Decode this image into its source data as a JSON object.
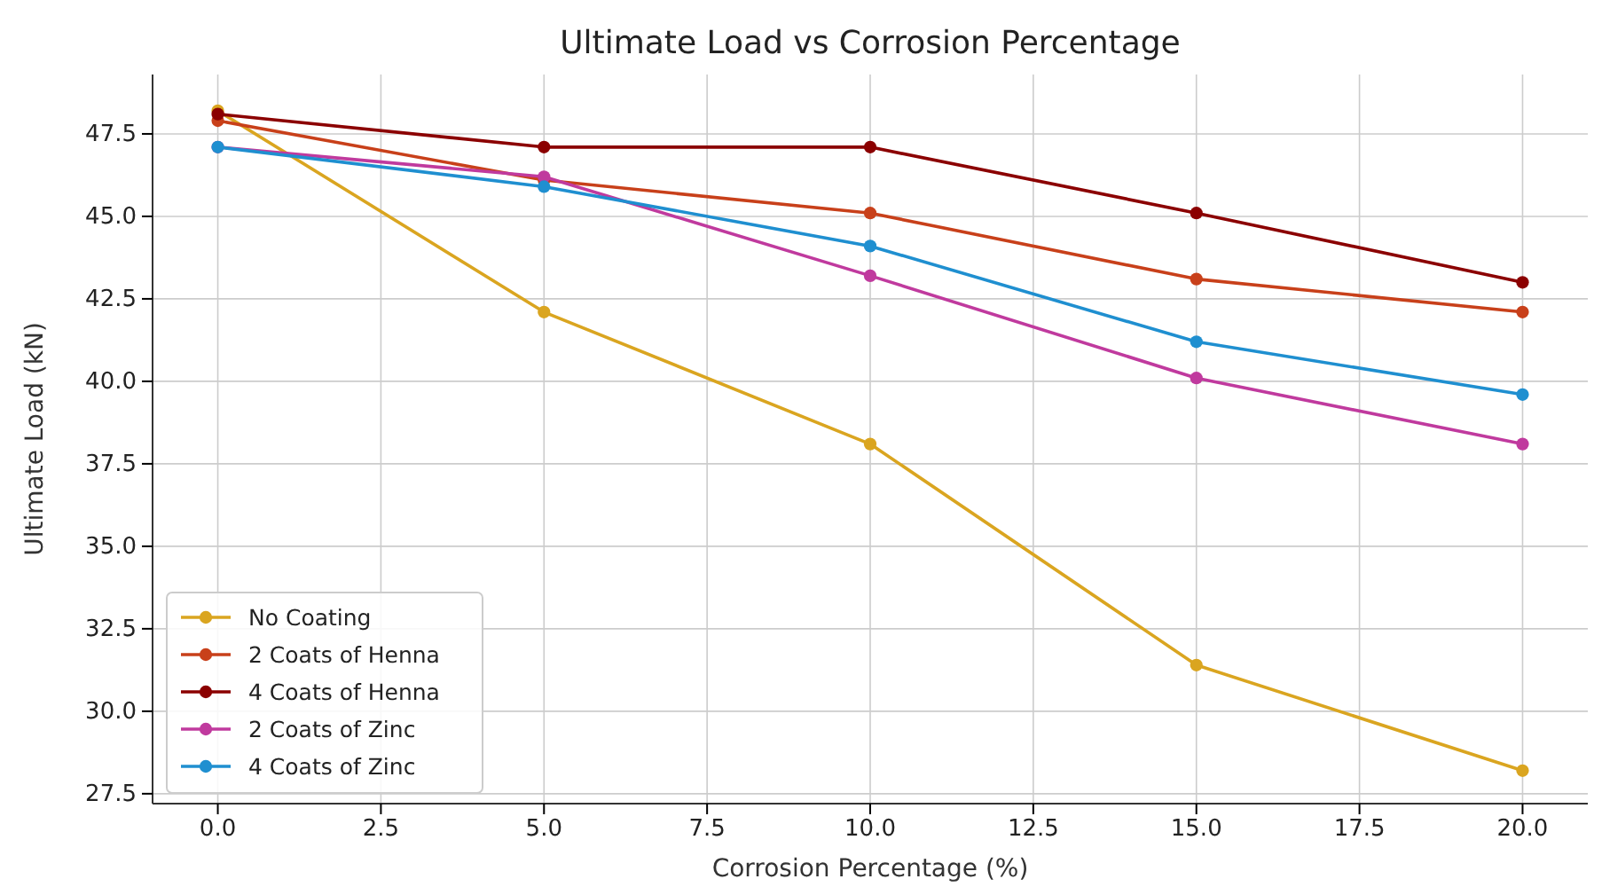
{
  "chart_data": {
    "type": "line",
    "title": "Ultimate Load vs Corrosion Percentage",
    "xlabel": "Corrosion Percentage (%)",
    "ylabel": "Ultimate Load (kN)",
    "x": [
      0,
      5,
      10,
      15,
      20
    ],
    "series": [
      {
        "name": "No Coating",
        "color": "#daa520",
        "values": [
          48.2,
          42.1,
          38.1,
          31.4,
          28.2
        ]
      },
      {
        "name": "2 Coats of Henna",
        "color": "#c8401a",
        "values": [
          47.9,
          46.1,
          45.1,
          43.1,
          42.1
        ]
      },
      {
        "name": "4 Coats of Henna",
        "color": "#8b0000",
        "values": [
          48.1,
          47.1,
          47.1,
          45.1,
          43.0
        ]
      },
      {
        "name": "2 Coats of Zinc",
        "color": "#c03a9e",
        "values": [
          47.1,
          46.2,
          43.2,
          40.1,
          38.1
        ]
      },
      {
        "name": "4 Coats of Zinc",
        "color": "#1f8fd0",
        "values": [
          47.1,
          45.9,
          44.1,
          41.2,
          39.6
        ]
      }
    ],
    "xlim": [
      -1,
      21
    ],
    "xticks": [
      {
        "value": 0,
        "label": "0.0"
      },
      {
        "value": 2.5,
        "label": "2.5"
      },
      {
        "value": 5,
        "label": "5.0"
      },
      {
        "value": 7.5,
        "label": "7.5"
      },
      {
        "value": 10,
        "label": "10.0"
      },
      {
        "value": 12.5,
        "label": "12.5"
      },
      {
        "value": 15,
        "label": "15.0"
      },
      {
        "value": 17.5,
        "label": "17.5"
      },
      {
        "value": 20,
        "label": "20.0"
      }
    ],
    "ylim": [
      27.2,
      49.3
    ],
    "yticks": [
      {
        "value": 27.5,
        "label": "27.5"
      },
      {
        "value": 30,
        "label": "30.0"
      },
      {
        "value": 32.5,
        "label": "32.5"
      },
      {
        "value": 35,
        "label": "35.0"
      },
      {
        "value": 37.5,
        "label": "37.5"
      },
      {
        "value": 40,
        "label": "40.0"
      },
      {
        "value": 42.5,
        "label": "42.5"
      },
      {
        "value": 45,
        "label": "45.0"
      },
      {
        "value": 47.5,
        "label": "47.5"
      }
    ],
    "grid": true,
    "legend": "bottom left",
    "marker": "circle",
    "line_style": "solid"
  }
}
